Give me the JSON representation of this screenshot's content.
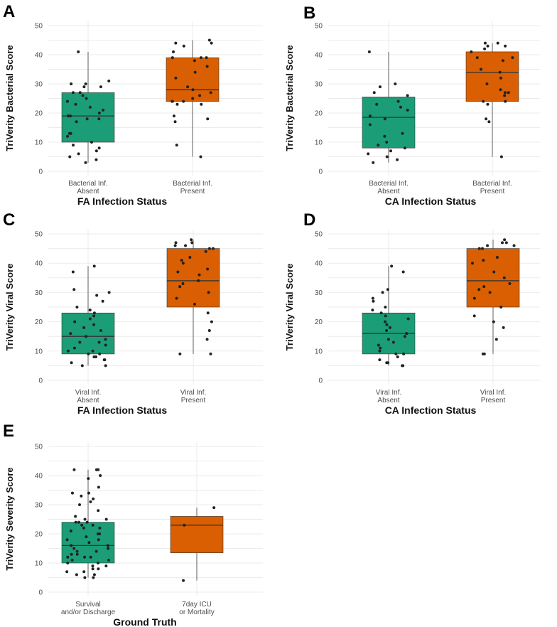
{
  "colors": {
    "group1": "#1b9e77",
    "group2": "#d95f02",
    "point": "#222222",
    "whisker": "#4d4d4d"
  },
  "chart_data": [
    {
      "panel": "A",
      "type": "box",
      "xlabel": "FA Infection Status",
      "ylabel": "TriVerity Bacterial Score",
      "ylim": [
        0,
        50
      ],
      "yticks": [
        0,
        10,
        20,
        30,
        40,
        50
      ],
      "grid": true,
      "categories": [
        {
          "line1": "Bacterial Inf.",
          "line2": "Absent",
          "box": {
            "min": 3,
            "q1": 10,
            "median": 19,
            "q3": 27,
            "max": 41
          },
          "points": [
            41,
            31,
            30,
            30,
            29,
            29,
            27,
            27,
            26,
            25,
            24,
            23,
            22,
            21,
            20,
            19,
            19,
            18,
            18,
            17,
            13,
            13,
            12,
            10,
            9,
            8,
            7,
            6,
            5,
            4,
            3
          ]
        },
        {
          "line1": "Bacterial Inf.",
          "line2": "Present",
          "box": {
            "min": 5,
            "q1": 24,
            "median": 28,
            "q3": 39,
            "max": 45
          },
          "points": [
            45,
            44,
            44,
            43,
            41,
            39,
            39,
            39,
            38,
            36,
            34,
            32,
            29,
            28,
            27,
            26,
            25,
            24,
            24,
            24,
            23,
            23,
            19,
            18,
            17,
            9,
            5
          ]
        }
      ]
    },
    {
      "panel": "B",
      "type": "box",
      "xlabel": "CA Infection Status",
      "ylabel": "TriVerity Bacterial Score",
      "ylim": [
        0,
        50
      ],
      "yticks": [
        0,
        10,
        20,
        30,
        40,
        50
      ],
      "grid": true,
      "categories": [
        {
          "line1": "Bacterial Inf.",
          "line2": "Absent",
          "box": {
            "min": 3,
            "q1": 8,
            "median": 18.5,
            "q3": 25.5,
            "max": 41
          },
          "points": [
            41,
            30,
            29,
            27,
            26,
            24,
            23,
            22,
            21,
            19,
            18,
            16,
            13,
            12,
            10,
            9,
            8,
            7,
            6,
            5,
            4,
            3
          ]
        },
        {
          "line1": "Bacterial Inf.",
          "line2": "Present",
          "box": {
            "min": 5,
            "q1": 24,
            "median": 34,
            "q3": 41,
            "max": 44
          },
          "points": [
            44,
            44,
            43,
            43,
            42,
            41,
            39,
            39,
            38,
            35,
            34,
            32,
            30,
            28,
            27,
            27,
            26,
            24,
            24,
            23,
            18,
            17,
            5
          ]
        }
      ]
    },
    {
      "panel": "C",
      "type": "box",
      "xlabel": "FA Infection Status",
      "ylabel": "TriVerity Viral Score",
      "ylim": [
        0,
        50
      ],
      "yticks": [
        0,
        10,
        20,
        30,
        40,
        50
      ],
      "grid": true,
      "categories": [
        {
          "line1": "Viral Inf.",
          "line2": "Absent",
          "box": {
            "min": 5,
            "q1": 9,
            "median": 15,
            "q3": 23,
            "max": 39
          },
          "points": [
            39,
            37,
            31,
            30,
            29,
            27,
            25,
            24,
            23,
            22,
            21,
            20,
            19,
            18,
            17,
            16,
            15,
            14,
            13,
            13,
            12,
            11,
            10,
            10,
            9,
            9,
            8,
            8,
            7,
            7,
            6,
            5,
            5
          ]
        },
        {
          "line1": "Viral Inf.",
          "line2": "Present",
          "box": {
            "min": 9,
            "q1": 25,
            "median": 34,
            "q3": 45,
            "max": 48
          },
          "points": [
            48,
            47,
            47,
            46,
            46,
            45,
            45,
            44,
            42,
            41,
            40,
            38,
            37,
            36,
            34,
            33,
            32,
            30,
            28,
            26,
            23,
            20,
            17,
            14,
            9,
            9
          ]
        }
      ]
    },
    {
      "panel": "D",
      "type": "box",
      "xlabel": "CA Infection Status",
      "ylabel": "TriVerity Viral Score",
      "ylim": [
        0,
        50
      ],
      "yticks": [
        0,
        10,
        20,
        30,
        40,
        50
      ],
      "grid": true,
      "categories": [
        {
          "line1": "Viral Inf.",
          "line2": "Absent",
          "box": {
            "min": 5,
            "q1": 9,
            "median": 16,
            "q3": 23,
            "max": 39
          },
          "points": [
            39,
            37,
            31,
            30,
            28,
            27,
            25,
            24,
            23,
            22,
            21,
            20,
            19,
            18,
            17,
            16,
            15,
            14,
            13,
            12,
            11,
            10,
            9,
            9,
            8,
            7,
            6,
            6,
            5,
            5
          ]
        },
        {
          "line1": "Viral Inf.",
          "line2": "Present",
          "box": {
            "min": 9,
            "q1": 25,
            "median": 34,
            "q3": 45,
            "max": 48
          },
          "points": [
            48,
            47,
            47,
            46,
            46,
            45,
            45,
            42,
            41,
            40,
            37,
            35,
            33,
            32,
            31,
            30,
            28,
            25,
            22,
            20,
            18,
            14,
            9,
            9
          ]
        }
      ]
    },
    {
      "panel": "E",
      "type": "box",
      "xlabel": "Ground Truth",
      "ylabel": "TriVerity Severity Score",
      "ylim": [
        0,
        50
      ],
      "yticks": [
        0,
        10,
        20,
        30,
        40,
        50
      ],
      "grid": true,
      "categories": [
        {
          "line1": "Survival",
          "line2": "and/or Discharge",
          "box": {
            "min": 5,
            "q1": 10,
            "median": 16,
            "q3": 24,
            "max": 42
          },
          "points": [
            42,
            42,
            42,
            40,
            39,
            36,
            34,
            34,
            33,
            32,
            31,
            30,
            28,
            26,
            25,
            25,
            24,
            24,
            24,
            23,
            23,
            22,
            22,
            21,
            20,
            20,
            19,
            18,
            18,
            17,
            16,
            16,
            15,
            15,
            14,
            14,
            13,
            13,
            12,
            12,
            12,
            11,
            11,
            10,
            10,
            9,
            9,
            8,
            8,
            7,
            7,
            6,
            6,
            5,
            5
          ]
        },
        {
          "line1": "7day ICU",
          "line2": "or Mortality",
          "box": {
            "min": 4,
            "q1": 13.5,
            "median": 23,
            "q3": 26,
            "max": 29
          },
          "points": [
            29,
            23,
            4
          ]
        }
      ]
    }
  ]
}
